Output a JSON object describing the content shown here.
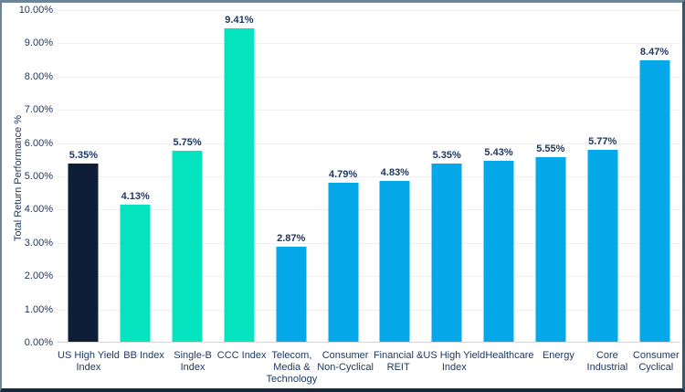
{
  "chart_data": {
    "type": "bar",
    "title": "",
    "xlabel": "",
    "ylabel": "Total Return Performance %",
    "ylim": [
      0,
      10
    ],
    "ytick_step": 1,
    "ytick_labels": [
      "10.00%",
      "9.00%",
      "8.00%",
      "7.00%",
      "6.00%",
      "5.00%",
      "4.00%",
      "3.00%",
      "2.00%",
      "1.00%",
      "0.00%"
    ],
    "grid": true,
    "legend": "none",
    "categories": [
      "US High Yield\nIndex",
      "BB Index",
      "Single-B\nIndex",
      "CCC Index",
      "Telecom,\nMedia &\nTechnology",
      "Consumer\nNon-Cyclical",
      "Financial &\nREIT",
      "US High Yield\nIndex",
      "Healthcare",
      "Energy",
      "Core\nIndustrial",
      "Consumer\nCyclical"
    ],
    "values": [
      5.35,
      4.13,
      5.75,
      9.41,
      2.87,
      4.79,
      4.83,
      5.35,
      5.43,
      5.55,
      5.77,
      8.47
    ],
    "data_labels": [
      "5.35%",
      "4.13%",
      "5.75%",
      "9.41%",
      "2.87%",
      "4.79%",
      "4.83%",
      "5.35%",
      "5.43%",
      "5.55%",
      "5.77%",
      "8.47%"
    ],
    "bar_color_keys": [
      "navy",
      "teal",
      "teal",
      "teal",
      "blue",
      "blue",
      "blue",
      "blue",
      "blue",
      "blue",
      "blue",
      "blue"
    ],
    "colors": {
      "navy": "#0d1e36",
      "teal": "#04e4c1",
      "blue": "#05a8e8",
      "text": "#1f3864",
      "gridline": "#efefef",
      "axis_line": "#d6d6d6"
    }
  }
}
